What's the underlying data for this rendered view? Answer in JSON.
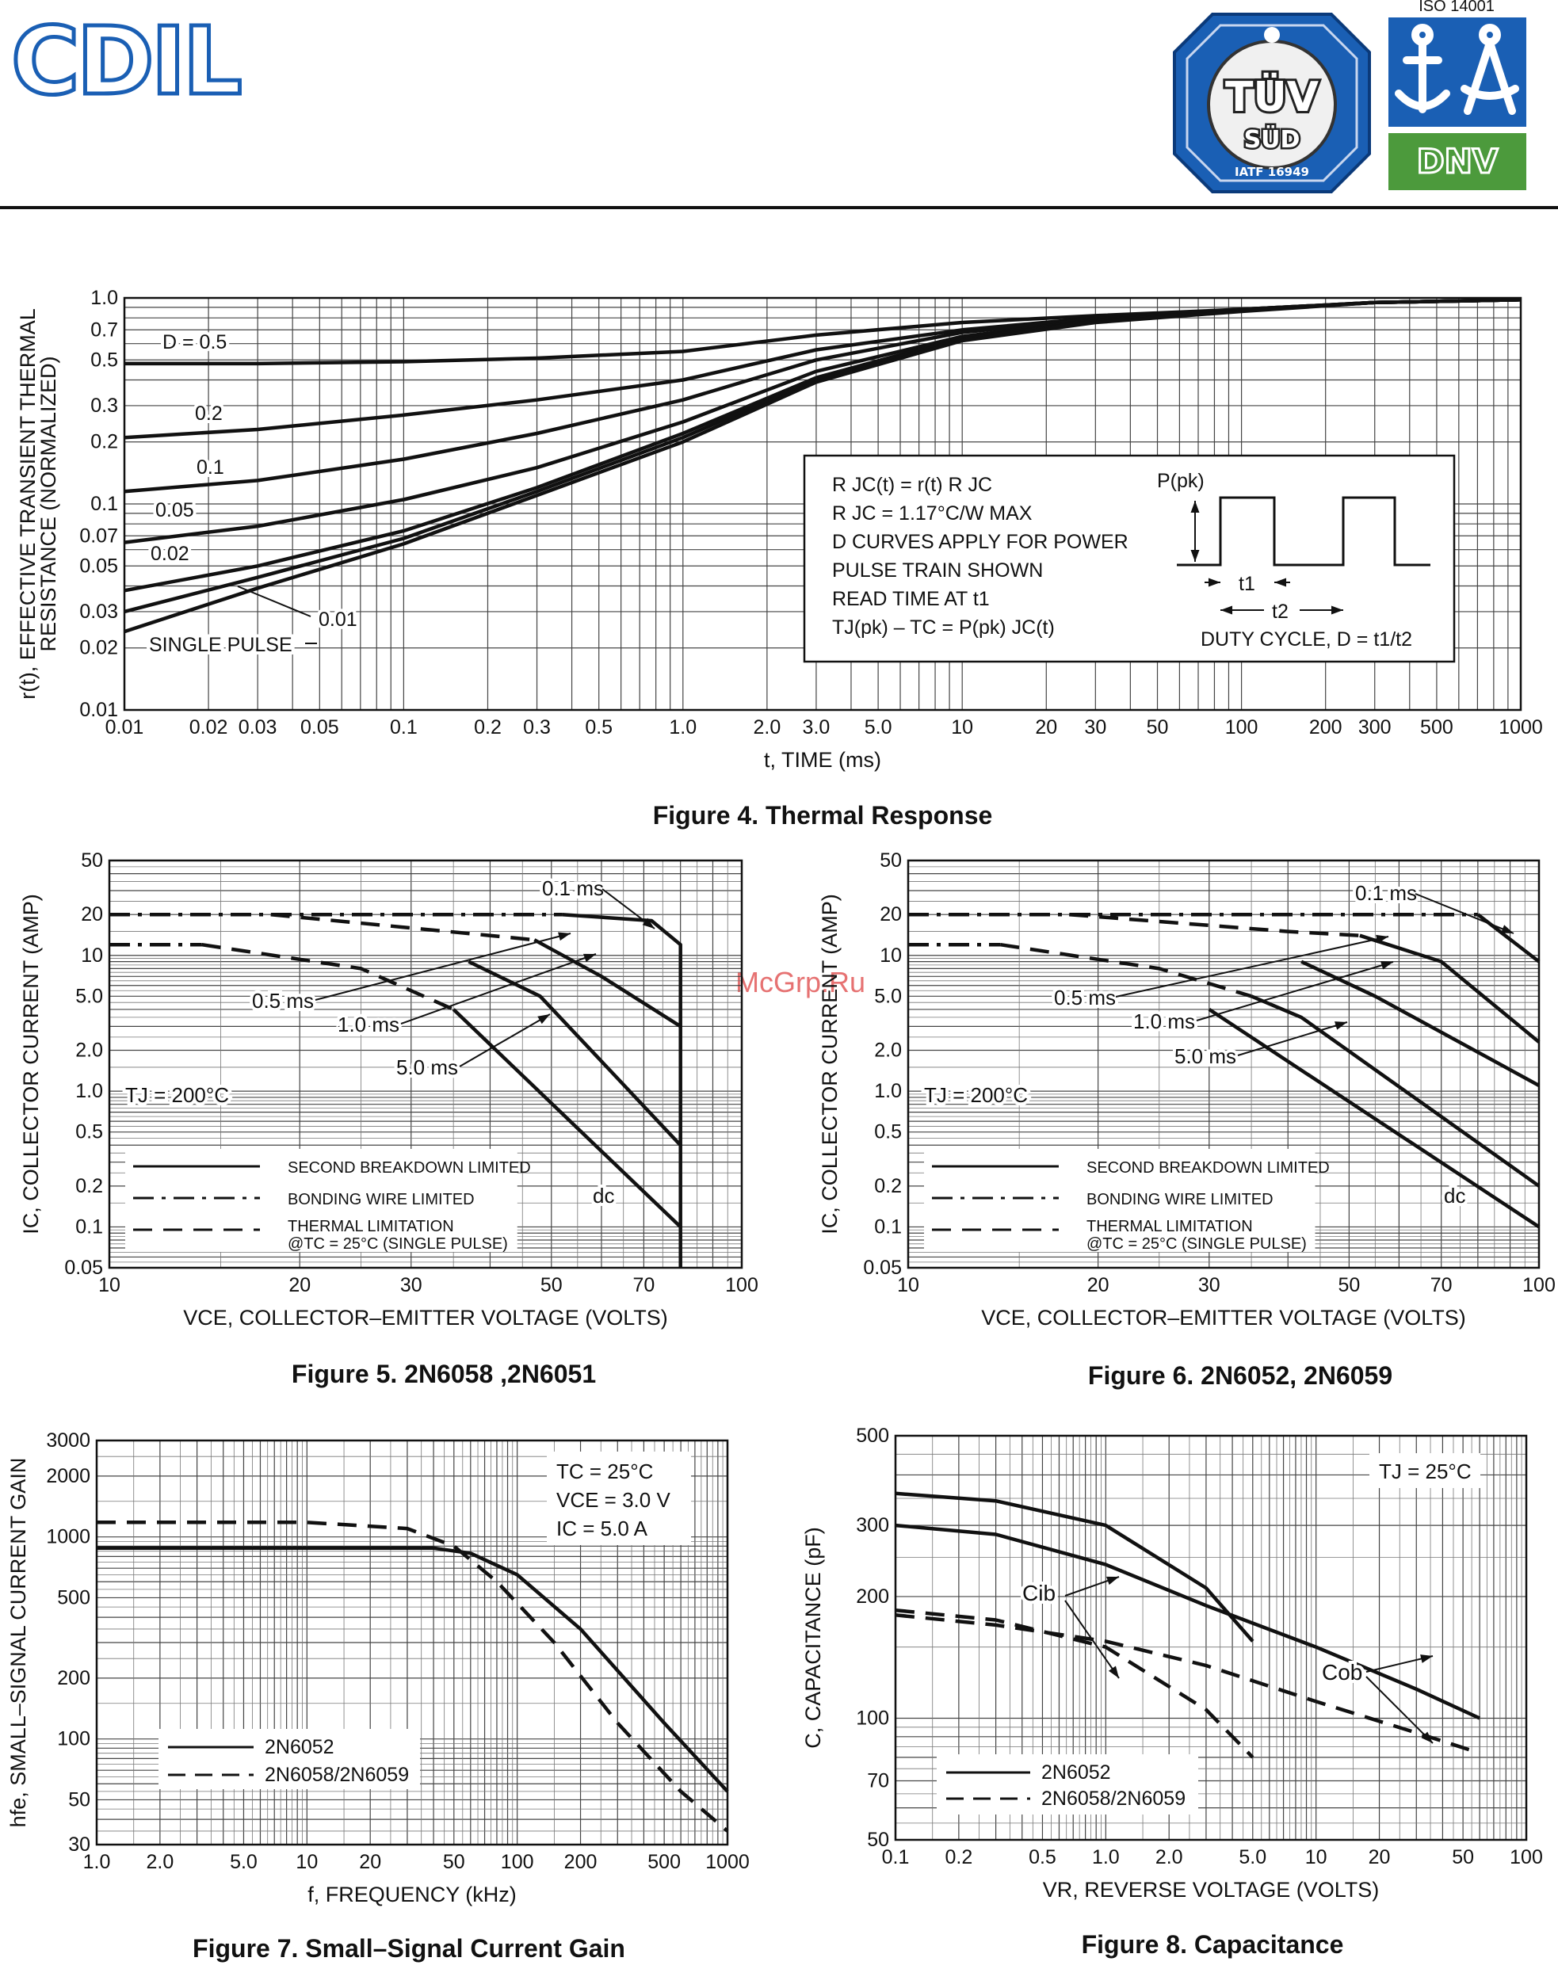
{
  "header": {
    "logo_text": "CDIL",
    "tuv_line1": "TÜV",
    "tuv_line2": "SÜD",
    "tuv_cert": "IATF 16949",
    "iso_label": "ISO 14001",
    "dnv_label": "DNV",
    "watermark": "McGrp.Ru"
  },
  "colors": {
    "accent": "#1a5fb4",
    "dnv_green": "#4c9a3c",
    "curve": "#111111",
    "grid": "#555555"
  },
  "chart_data": [
    {
      "id": "fig4",
      "type": "line",
      "title": "Figure 4. Thermal Response",
      "xlabel": "t, TIME (ms)",
      "ylabel_line1": "r(t), EFFECTIVE TRANSIENT THERMAL",
      "ylabel_line2": "RESISTANCE (NORMALIZED)",
      "xscale": "log",
      "yscale": "log",
      "xlim": [
        0.01,
        1000
      ],
      "ylim": [
        0.01,
        1.0
      ],
      "xticks": [
        0.01,
        0.02,
        0.03,
        0.05,
        0.1,
        0.2,
        0.3,
        0.5,
        1,
        2,
        3,
        5,
        10,
        20,
        30,
        50,
        100,
        200,
        300,
        500,
        1000
      ],
      "xtick_labels": [
        "0.01",
        "0.02",
        "0.03",
        "0.05",
        "0.1",
        "0.2",
        "0.3",
        "0.5",
        "1.0",
        "2.0",
        "3.0",
        "5.0",
        "10",
        "20",
        "30",
        "50",
        "100",
        "200",
        "300",
        "500",
        "1000"
      ],
      "yticks": [
        0.01,
        0.02,
        0.03,
        0.05,
        0.07,
        0.1,
        0.2,
        0.3,
        0.5,
        0.7,
        1.0
      ],
      "ytick_labels": [
        "0.01",
        "0.02",
        "0.03",
        "0.05",
        "0.07",
        "0.1",
        "0.2",
        "0.3",
        "0.5",
        "0.7",
        "1.0"
      ],
      "series": [
        {
          "name": "D = 0.5",
          "dash": "solid",
          "x": [
            0.01,
            0.03,
            0.1,
            0.3,
            1,
            3,
            10,
            30,
            100,
            300,
            1000
          ],
          "y": [
            0.48,
            0.48,
            0.49,
            0.51,
            0.55,
            0.66,
            0.76,
            0.82,
            0.88,
            0.95,
            0.98
          ]
        },
        {
          "name": "0.2",
          "dash": "solid",
          "x": [
            0.01,
            0.03,
            0.1,
            0.3,
            1,
            3,
            10,
            30,
            100,
            300,
            1000
          ],
          "y": [
            0.21,
            0.23,
            0.27,
            0.32,
            0.4,
            0.56,
            0.7,
            0.8,
            0.88,
            0.95,
            0.98
          ]
        },
        {
          "name": "0.1",
          "dash": "solid",
          "x": [
            0.01,
            0.03,
            0.1,
            0.3,
            1,
            3,
            10,
            30,
            100,
            300,
            1000
          ],
          "y": [
            0.115,
            0.13,
            0.165,
            0.22,
            0.32,
            0.5,
            0.68,
            0.79,
            0.88,
            0.95,
            0.98
          ]
        },
        {
          "name": "0.05",
          "dash": "solid",
          "x": [
            0.01,
            0.03,
            0.1,
            0.3,
            1,
            3,
            10,
            30,
            100,
            300,
            1000
          ],
          "y": [
            0.065,
            0.078,
            0.105,
            0.15,
            0.25,
            0.44,
            0.65,
            0.78,
            0.87,
            0.95,
            0.98
          ]
        },
        {
          "name": "0.02",
          "dash": "solid",
          "x": [
            0.01,
            0.03,
            0.1,
            0.3,
            1,
            3,
            10,
            30,
            100,
            300,
            1000
          ],
          "y": [
            0.038,
            0.05,
            0.074,
            0.12,
            0.22,
            0.41,
            0.64,
            0.77,
            0.87,
            0.95,
            0.98
          ]
        },
        {
          "name": "0.01",
          "dash": "solid",
          "x": [
            0.01,
            0.03,
            0.1,
            0.3,
            1,
            3,
            10,
            30,
            100,
            300,
            1000
          ],
          "y": [
            0.03,
            0.044,
            0.068,
            0.115,
            0.21,
            0.4,
            0.63,
            0.77,
            0.87,
            0.95,
            0.98
          ]
        },
        {
          "name": "SINGLE PULSE",
          "dash": "solid",
          "x": [
            0.01,
            0.03,
            0.1,
            0.3,
            1,
            3,
            10,
            30,
            100,
            300,
            1000
          ],
          "y": [
            0.024,
            0.039,
            0.064,
            0.11,
            0.2,
            0.39,
            0.62,
            0.76,
            0.86,
            0.95,
            0.98
          ]
        }
      ],
      "curve_labels": [
        "D = 0.5",
        "0.2",
        "0.1",
        "0.05",
        "0.02",
        "0.01",
        "SINGLE PULSE"
      ],
      "inset": {
        "line1": "R JC(t) = r(t) R JC",
        "line2": "R JC = 1.17°C/W MAX",
        "line3": "D CURVES APPLY FOR POWER",
        "line4": "PULSE TRAIN SHOWN",
        "line5": "READ TIME AT t1",
        "line6": "TJ(pk) – TC = P(pk) JC(t)",
        "ppk": "P(pk)",
        "t1": "t1",
        "t2": "t2",
        "duty": "DUTY CYCLE, D = t1/t2"
      }
    },
    {
      "id": "fig5",
      "type": "line",
      "title": "Figure 5. 2N6058 ,2N6051",
      "xlabel": "VCE, COLLECTOR–EMITTER VOLTAGE (VOLTS)",
      "ylabel": "IC, COLLECTOR CURRENT (AMP)",
      "xscale": "log",
      "yscale": "log",
      "xlim": [
        10,
        100
      ],
      "ylim": [
        0.05,
        50
      ],
      "xticks": [
        10,
        20,
        30,
        50,
        70,
        100
      ],
      "xtick_labels": [
        "10",
        "20",
        "30",
        "50",
        "70",
        "100"
      ],
      "yticks": [
        0.05,
        0.1,
        0.2,
        0.5,
        1,
        2,
        5,
        10,
        20,
        50
      ],
      "ytick_labels": [
        "0.05",
        "0.1",
        "0.2",
        "0.5",
        "1.0",
        "2.0",
        "5.0",
        "10",
        "20",
        "50"
      ],
      "annotation": "TJ = 200°C",
      "curve_labels": [
        "0.1 ms",
        "0.5 ms",
        "1.0 ms",
        "5.0 ms",
        "dc"
      ],
      "legend": [
        "SECOND BREAKDOWN LIMITED",
        "BONDING WIRE LIMITED",
        "THERMAL LIMITATION",
        "@TC = 25°C (SINGLE PULSE)"
      ],
      "series": [
        {
          "name": "0.1 ms",
          "dash": "solid",
          "x": [
            52,
            72,
            80,
            80
          ],
          "y": [
            20,
            18,
            12,
            0.05
          ]
        },
        {
          "name": "0.5 ms",
          "dash": "solid",
          "x": [
            47,
            60,
            80
          ],
          "y": [
            13,
            7,
            3
          ]
        },
        {
          "name": "1.0 ms",
          "dash": "solid",
          "x": [
            37,
            48,
            80
          ],
          "y": [
            9,
            5,
            0.4
          ]
        },
        {
          "name": "5.0 ms",
          "dash": "solid",
          "x": [
            35,
            80
          ],
          "y": [
            4,
            0.1
          ]
        },
        {
          "name": "bond",
          "dash": "dashdot",
          "x": [
            10,
            52
          ],
          "y": [
            20,
            20
          ]
        },
        {
          "name": "bond2",
          "dash": "dashdot",
          "x": [
            10,
            14
          ],
          "y": [
            12,
            12
          ]
        },
        {
          "name": "thermal1",
          "dash": "dash",
          "x": [
            18,
            40,
            47
          ],
          "y": [
            20,
            14,
            13
          ]
        },
        {
          "name": "thermal2",
          "dash": "dash",
          "x": [
            14,
            25,
            35
          ],
          "y": [
            12,
            8,
            4
          ]
        }
      ]
    },
    {
      "id": "fig6",
      "type": "line",
      "title": "Figure 6. 2N6052, 2N6059",
      "xlabel": "VCE, COLLECTOR–EMITTER VOLTAGE (VOLTS)",
      "ylabel": "IC, COLLECTOR CURRENT (AMP)",
      "xscale": "log",
      "yscale": "log",
      "xlim": [
        10,
        100
      ],
      "ylim": [
        0.05,
        50
      ],
      "xticks": [
        10,
        20,
        30,
        50,
        70,
        100
      ],
      "xtick_labels": [
        "10",
        "20",
        "30",
        "50",
        "70",
        "100"
      ],
      "yticks": [
        0.05,
        0.1,
        0.2,
        0.5,
        1,
        2,
        5,
        10,
        20,
        50
      ],
      "ytick_labels": [
        "0.05",
        "0.1",
        "0.2",
        "0.5",
        "1.0",
        "2.0",
        "5.0",
        "10",
        "20",
        "50"
      ],
      "annotation": "TJ = 200°C",
      "curve_labels": [
        "0.1 ms",
        "0.5 ms",
        "1.0 ms",
        "5.0 ms",
        "dc"
      ],
      "legend": [
        "SECOND BREAKDOWN LIMITED",
        "BONDING WIRE LIMITED",
        "THERMAL LIMITATION",
        "@TC = 25°C (SINGLE PULSE)"
      ],
      "series": [
        {
          "name": "0.1 ms",
          "dash": "solid",
          "x": [
            80,
            100
          ],
          "y": [
            20,
            9
          ]
        },
        {
          "name": "0.5 ms",
          "dash": "solid",
          "x": [
            52,
            70,
            100
          ],
          "y": [
            14,
            9,
            2.3
          ]
        },
        {
          "name": "1.0 ms",
          "dash": "solid",
          "x": [
            42,
            55,
            100
          ],
          "y": [
            9,
            5,
            1.1
          ]
        },
        {
          "name": "5.0 ms",
          "dash": "solid",
          "x": [
            35,
            42,
            100
          ],
          "y": [
            5,
            3.5,
            0.2
          ]
        },
        {
          "name": "dc",
          "dash": "solid",
          "x": [
            30,
            100
          ],
          "y": [
            4,
            0.1
          ]
        },
        {
          "name": "bond",
          "dash": "dashdot",
          "x": [
            10,
            80
          ],
          "y": [
            20,
            20
          ]
        },
        {
          "name": "bond2",
          "dash": "dashdot",
          "x": [
            10,
            14
          ],
          "y": [
            12,
            12
          ]
        },
        {
          "name": "thermal1",
          "dash": "dash",
          "x": [
            18,
            40,
            52
          ],
          "y": [
            20,
            15,
            14
          ]
        },
        {
          "name": "thermal2",
          "dash": "dash",
          "x": [
            14,
            25,
            35
          ],
          "y": [
            12,
            8,
            5
          ]
        }
      ]
    },
    {
      "id": "fig7",
      "type": "line",
      "title": "Figure 7. Small–Signal Current Gain",
      "xlabel": "f, FREQUENCY (kHz)",
      "ylabel": "hfe, SMALL–SIGNAL CURRENT GAIN",
      "xscale": "log",
      "yscale": "log",
      "xlim": [
        1,
        1000
      ],
      "ylim": [
        30,
        3000
      ],
      "xticks": [
        1,
        2,
        5,
        10,
        20,
        50,
        100,
        200,
        500,
        1000
      ],
      "xtick_labels": [
        "1.0",
        "2.0",
        "5.0",
        "10",
        "20",
        "50",
        "100",
        "200",
        "500",
        "1000"
      ],
      "yticks": [
        30,
        50,
        100,
        200,
        500,
        1000,
        2000,
        3000
      ],
      "ytick_labels": [
        "30",
        "50",
        "100",
        "200",
        "500",
        "1000",
        "2000",
        "3000"
      ],
      "annotation_lines": [
        "TC = 25°C",
        "VCE = 3.0 V",
        "IC = 5.0 A"
      ],
      "series": [
        {
          "name": "2N6052",
          "dash": "solid",
          "x": [
            1,
            10,
            40,
            60,
            100,
            200,
            500,
            1000
          ],
          "y": [
            880,
            880,
            880,
            830,
            650,
            350,
            120,
            55
          ]
        },
        {
          "name": "2N6058/2N6059",
          "dash": "dash",
          "x": [
            1,
            10,
            30,
            50,
            80,
            150,
            300,
            600,
            1000
          ],
          "y": [
            1180,
            1180,
            1100,
            900,
            600,
            300,
            120,
            55,
            35
          ]
        }
      ]
    },
    {
      "id": "fig8",
      "type": "line",
      "title": "Figure 8. Capacitance",
      "xlabel": "VR, REVERSE VOLTAGE (VOLTS)",
      "ylabel": "C, CAPACITANCE (pF)",
      "xscale": "log",
      "yscale": "log",
      "xlim": [
        0.1,
        100
      ],
      "ylim": [
        50,
        500
      ],
      "xticks": [
        0.1,
        0.2,
        0.5,
        1,
        2,
        5,
        10,
        20,
        50,
        100
      ],
      "xtick_labels": [
        "0.1",
        "0.2",
        "0.5",
        "1.0",
        "2.0",
        "5.0",
        "10",
        "20",
        "50",
        "100"
      ],
      "yticks": [
        50,
        70,
        100,
        200,
        300,
        500
      ],
      "ytick_labels": [
        "50",
        "70",
        "100",
        "200",
        "300",
        "500"
      ],
      "annotation": "TJ = 25°C",
      "curve_labels": [
        "Cib",
        "Cob"
      ],
      "series": [
        {
          "name": "2N6052 Cib",
          "dash": "solid",
          "x": [
            0.1,
            0.3,
            1,
            3,
            5
          ],
          "y": [
            360,
            345,
            300,
            210,
            155
          ]
        },
        {
          "name": "2N6052 Cob",
          "dash": "solid",
          "x": [
            0.1,
            0.3,
            1,
            3,
            10,
            30,
            60
          ],
          "y": [
            300,
            285,
            240,
            190,
            150,
            118,
            100
          ]
        },
        {
          "name": "2N6058/2N6059 Cib",
          "dash": "dash",
          "x": [
            0.1,
            0.3,
            1,
            3,
            5
          ],
          "y": [
            185,
            175,
            150,
            105,
            80
          ]
        },
        {
          "name": "2N6058/2N6059 Cob",
          "dash": "dash",
          "x": [
            0.1,
            0.3,
            1,
            3,
            10,
            30,
            60
          ],
          "y": [
            180,
            170,
            155,
            135,
            110,
            92,
            82
          ]
        }
      ],
      "legend": [
        "2N6052",
        "2N6058/2N6059"
      ]
    }
  ]
}
